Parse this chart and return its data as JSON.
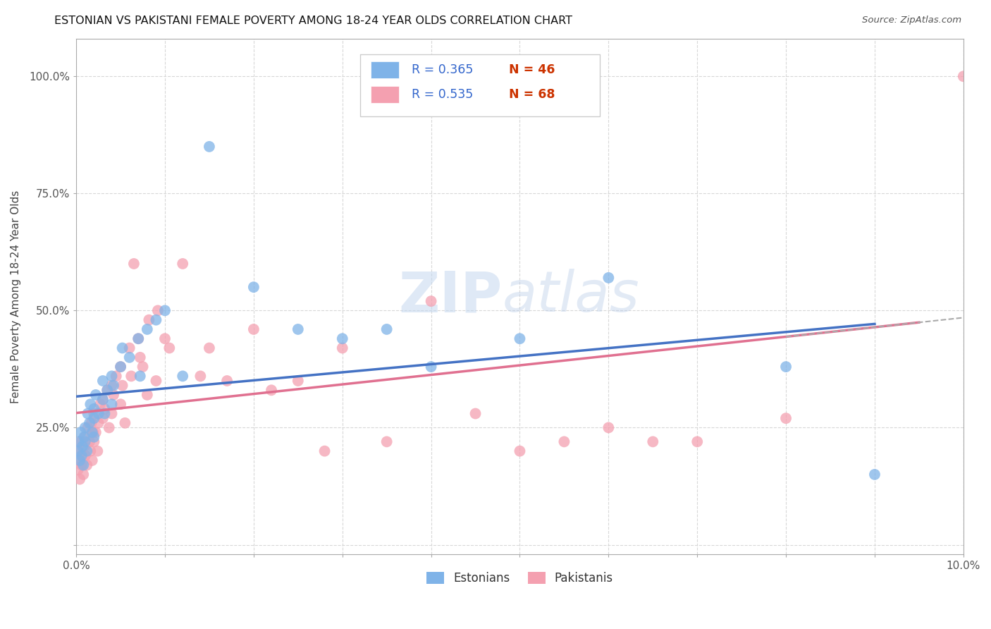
{
  "title": "ESTONIAN VS PAKISTANI FEMALE POVERTY AMONG 18-24 YEAR OLDS CORRELATION CHART",
  "source": "Source: ZipAtlas.com",
  "ylabel": "Female Poverty Among 18-24 Year Olds",
  "xlim": [
    0.0,
    0.1
  ],
  "ylim": [
    -0.02,
    1.08
  ],
  "xticks": [
    0.0,
    0.01,
    0.02,
    0.03,
    0.04,
    0.05,
    0.06,
    0.07,
    0.08,
    0.09,
    0.1
  ],
  "xticklabels": [
    "0.0%",
    "",
    "",
    "",
    "",
    "",
    "",
    "",
    "",
    "",
    "10.0%"
  ],
  "yticks": [
    0.0,
    0.25,
    0.5,
    0.75,
    1.0
  ],
  "yticklabels": [
    "",
    "25.0%",
    "50.0%",
    "75.0%",
    "100.0%"
  ],
  "background_color": "#ffffff",
  "grid_color": "#d8d8d8",
  "estonian_color": "#7fb3e8",
  "pakistani_color": "#f4a0b0",
  "estonian_line_color": "#4472c4",
  "pakistani_line_color": "#e07090",
  "legend_R_color": "#3366cc",
  "legend_N_color": "#cc3300",
  "estonian_R": 0.365,
  "estonian_N": 46,
  "pakistani_R": 0.535,
  "pakistani_N": 68,
  "estonian_x": [
    0.0002,
    0.0003,
    0.0004,
    0.0005,
    0.0006,
    0.0007,
    0.0008,
    0.0009,
    0.001,
    0.001,
    0.0012,
    0.0013,
    0.0015,
    0.0016,
    0.0018,
    0.002,
    0.002,
    0.002,
    0.0022,
    0.0025,
    0.003,
    0.003,
    0.0032,
    0.0035,
    0.004,
    0.004,
    0.0042,
    0.005,
    0.0052,
    0.006,
    0.007,
    0.0072,
    0.008,
    0.009,
    0.01,
    0.012,
    0.015,
    0.02,
    0.025,
    0.03,
    0.035,
    0.04,
    0.05,
    0.06,
    0.08,
    0.09
  ],
  "estonian_y": [
    0.2,
    0.22,
    0.18,
    0.24,
    0.19,
    0.21,
    0.17,
    0.23,
    0.25,
    0.22,
    0.2,
    0.28,
    0.26,
    0.3,
    0.24,
    0.27,
    0.23,
    0.29,
    0.32,
    0.28,
    0.31,
    0.35,
    0.28,
    0.33,
    0.36,
    0.3,
    0.34,
    0.38,
    0.42,
    0.4,
    0.44,
    0.36,
    0.46,
    0.48,
    0.5,
    0.36,
    0.85,
    0.55,
    0.46,
    0.44,
    0.46,
    0.38,
    0.44,
    0.57,
    0.38,
    0.15
  ],
  "pakistani_x": [
    0.0001,
    0.0002,
    0.0003,
    0.0004,
    0.0005,
    0.0006,
    0.0007,
    0.0008,
    0.0009,
    0.001,
    0.001,
    0.0012,
    0.0013,
    0.0015,
    0.0016,
    0.0017,
    0.0018,
    0.0019,
    0.002,
    0.002,
    0.0022,
    0.0024,
    0.0025,
    0.0027,
    0.003,
    0.003,
    0.0032,
    0.0035,
    0.0037,
    0.004,
    0.004,
    0.0042,
    0.0045,
    0.005,
    0.005,
    0.0052,
    0.0055,
    0.006,
    0.0062,
    0.0065,
    0.007,
    0.0072,
    0.0075,
    0.008,
    0.0082,
    0.009,
    0.0092,
    0.01,
    0.0105,
    0.012,
    0.014,
    0.015,
    0.017,
    0.02,
    0.022,
    0.025,
    0.028,
    0.03,
    0.035,
    0.04,
    0.045,
    0.05,
    0.055,
    0.06,
    0.065,
    0.07,
    0.08,
    0.1
  ],
  "pakistani_y": [
    0.18,
    0.16,
    0.2,
    0.14,
    0.22,
    0.17,
    0.19,
    0.15,
    0.21,
    0.23,
    0.19,
    0.17,
    0.25,
    0.22,
    0.2,
    0.26,
    0.18,
    0.24,
    0.28,
    0.22,
    0.24,
    0.2,
    0.26,
    0.3,
    0.31,
    0.27,
    0.29,
    0.33,
    0.25,
    0.34,
    0.28,
    0.32,
    0.36,
    0.3,
    0.38,
    0.34,
    0.26,
    0.42,
    0.36,
    0.6,
    0.44,
    0.4,
    0.38,
    0.32,
    0.48,
    0.35,
    0.5,
    0.44,
    0.42,
    0.6,
    0.36,
    0.42,
    0.35,
    0.46,
    0.33,
    0.35,
    0.2,
    0.42,
    0.22,
    0.52,
    0.28,
    0.2,
    0.22,
    0.25,
    0.22,
    0.22,
    0.27,
    1.0
  ]
}
